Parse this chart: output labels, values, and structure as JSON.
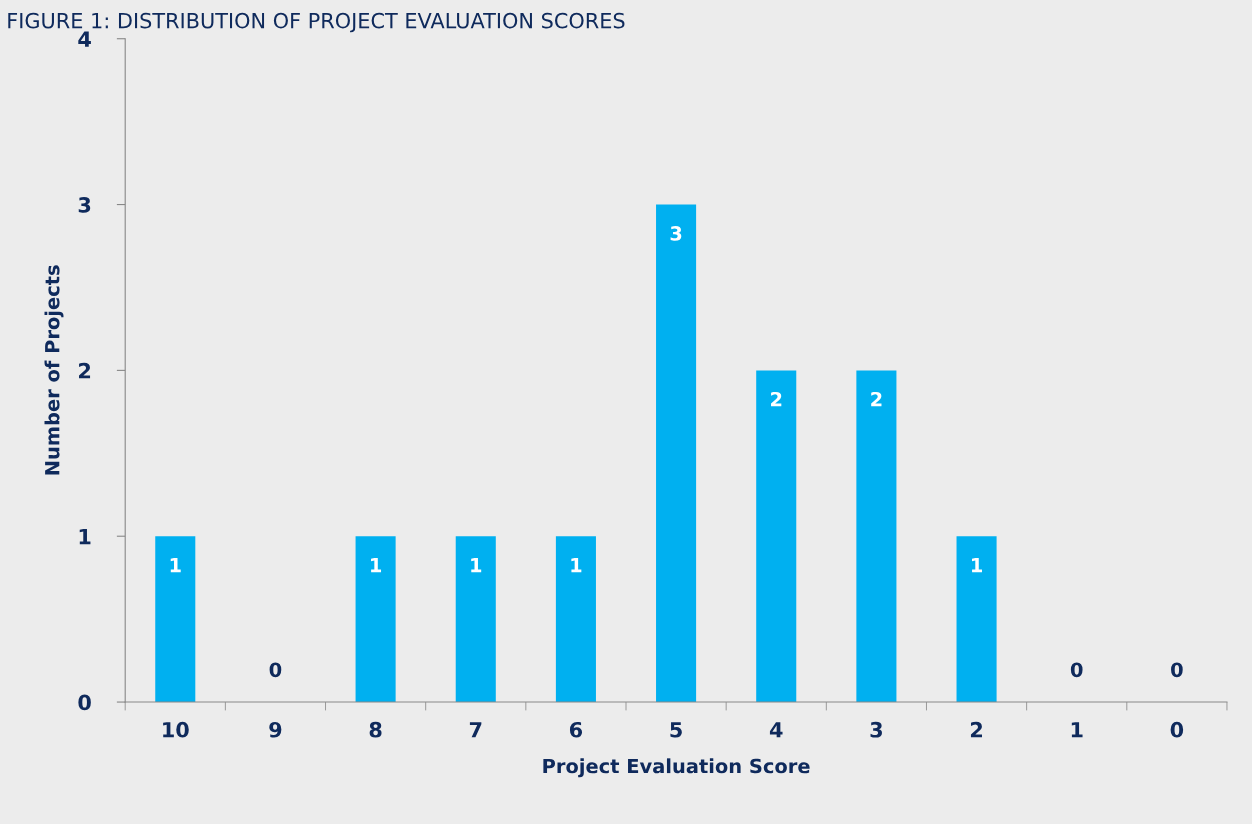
{
  "chart_data": {
    "type": "bar",
    "title": "FIGURE 1: DISTRIBUTION OF PROJECT EVALUATION SCORES",
    "xlabel": "Project Evaluation Score",
    "ylabel": "Number of Projects",
    "categories": [
      "10",
      "9",
      "8",
      "7",
      "6",
      "5",
      "4",
      "3",
      "2",
      "1",
      "0"
    ],
    "values": [
      1,
      0,
      1,
      1,
      1,
      3,
      2,
      2,
      1,
      0,
      0
    ],
    "color": "#00b0f0",
    "ylim": [
      0,
      4
    ],
    "yticks": [
      0,
      1,
      2,
      3,
      4
    ],
    "grid": false,
    "data_labels": true
  }
}
